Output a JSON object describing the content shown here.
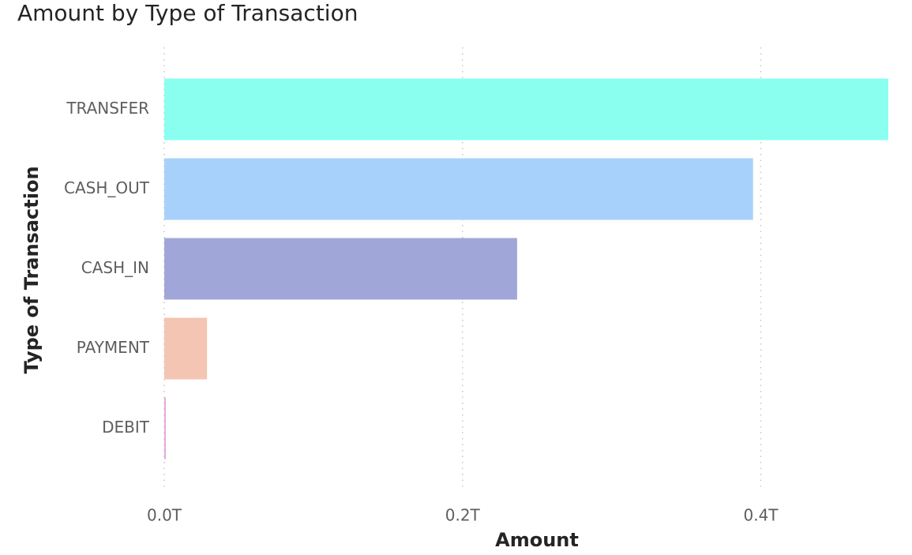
{
  "chart_data": {
    "type": "bar",
    "orientation": "horizontal",
    "title": "Amount by Type of Transaction",
    "xlabel": "Amount",
    "ylabel": "Type of Transaction",
    "categories": [
      "TRANSFER",
      "CASH_OUT",
      "CASH_IN",
      "PAYMENT",
      "DEBIT"
    ],
    "values": [
      0.4855,
      0.3948,
      0.2366,
      0.0287,
      0.0002
    ],
    "value_unit": "T",
    "colors": [
      "#8afff0",
      "#a7d1fa",
      "#a0a7d8",
      "#f4c5b2",
      "#e7a8d8"
    ],
    "x_ticks": [
      0,
      0.2,
      0.4
    ],
    "x_tick_labels": [
      "0.0T",
      "0.2T",
      "0.4T"
    ],
    "xlim": [
      0,
      0.4855
    ],
    "grid": "vertical dotted",
    "legend": "none"
  }
}
